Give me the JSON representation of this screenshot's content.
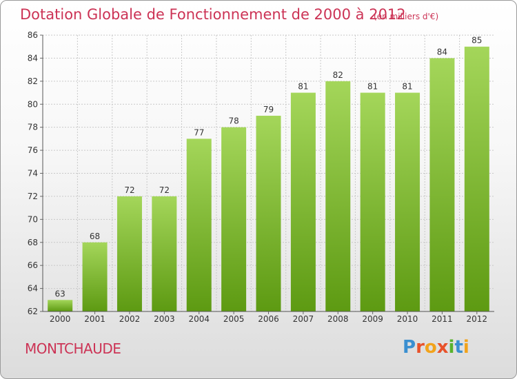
{
  "chart_data": {
    "type": "bar",
    "title": "Dotation Globale de Fonctionnement de 2000 à 2012",
    "subtitle": "(en milliers d'€)",
    "categories": [
      "2000",
      "2001",
      "2002",
      "2003",
      "2004",
      "2005",
      "2006",
      "2007",
      "2008",
      "2009",
      "2010",
      "2011",
      "2012"
    ],
    "values": [
      63,
      68,
      72,
      72,
      77,
      78,
      79,
      81,
      82,
      81,
      81,
      84,
      85
    ],
    "ylim": [
      62,
      86
    ],
    "yticks": [
      62,
      64,
      66,
      68,
      70,
      72,
      74,
      76,
      78,
      80,
      82,
      84,
      86
    ],
    "grid": true,
    "bar_color_top": "#a4d65a",
    "bar_color_bottom": "#5d9a12"
  },
  "footer": {
    "commune": "MONTCHAUDE",
    "logo_text": "Proxiti",
    "logo_colors": [
      "#3a8fd0",
      "#e8522a",
      "#f2a31b",
      "#e8522a",
      "#58b22c",
      "#3a8fd0",
      "#f2a31b"
    ]
  },
  "colors": {
    "title": "#cc3355",
    "grid": "#c8c8c8"
  }
}
